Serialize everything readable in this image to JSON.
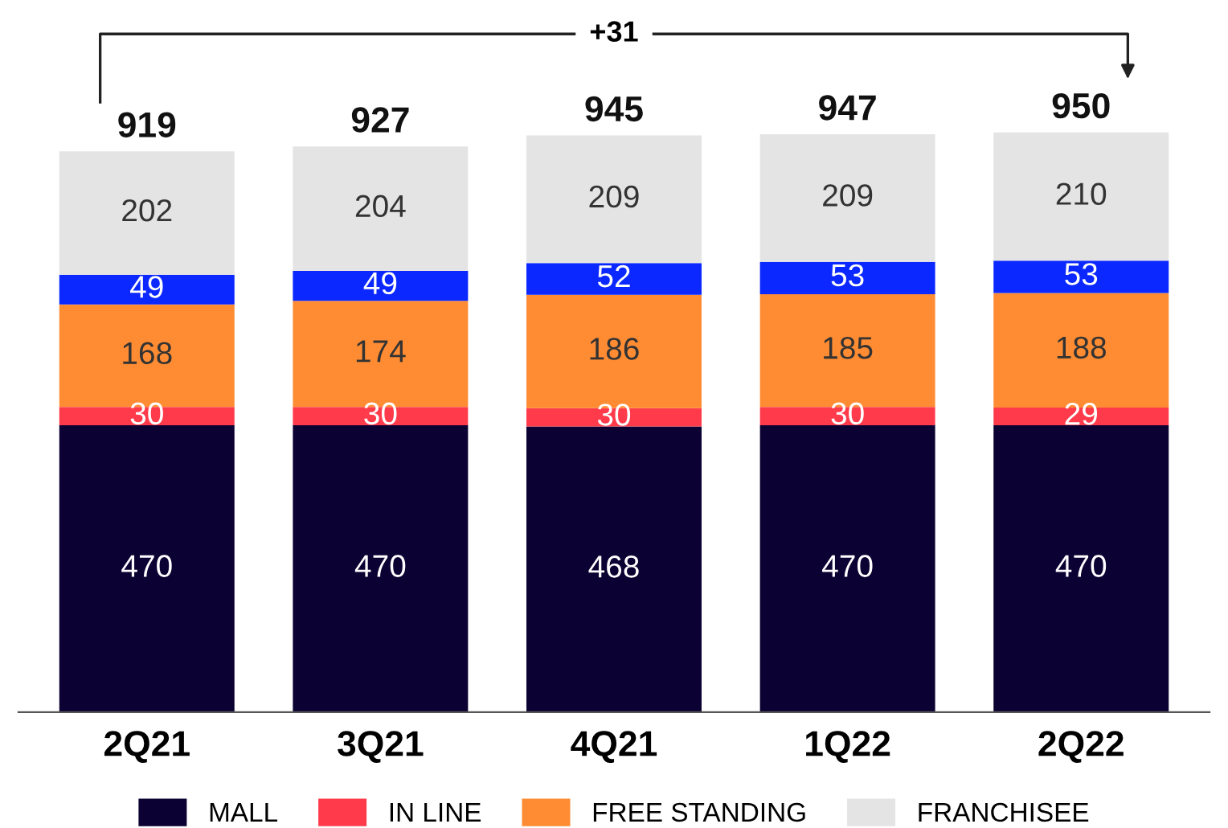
{
  "chart_data": {
    "type": "bar",
    "stacked": true,
    "categories": [
      "2Q21",
      "3Q21",
      "4Q21",
      "1Q22",
      "2Q22"
    ],
    "series": [
      {
        "name": "MALL",
        "color": "#0b0132",
        "values": [
          470,
          470,
          468,
          470,
          470
        ]
      },
      {
        "name": "IN LINE",
        "color": "#ff3b4b",
        "values": [
          30,
          30,
          30,
          30,
          29
        ]
      },
      {
        "name": "FREE STANDING",
        "color": "#ff8c33",
        "values": [
          168,
          174,
          186,
          185,
          188
        ]
      },
      {
        "color": "#0a28ff",
        "values": [
          49,
          49,
          52,
          53,
          53
        ]
      },
      {
        "name": "FRANCHISEE",
        "color": "#e4e4e4",
        "values": [
          202,
          204,
          209,
          209,
          210
        ]
      }
    ],
    "totals": [
      "919",
      "927",
      "945",
      "947",
      "950"
    ],
    "data_labels": true,
    "annotations": [
      "+31"
    ],
    "legend": "bottom",
    "grid": false
  }
}
